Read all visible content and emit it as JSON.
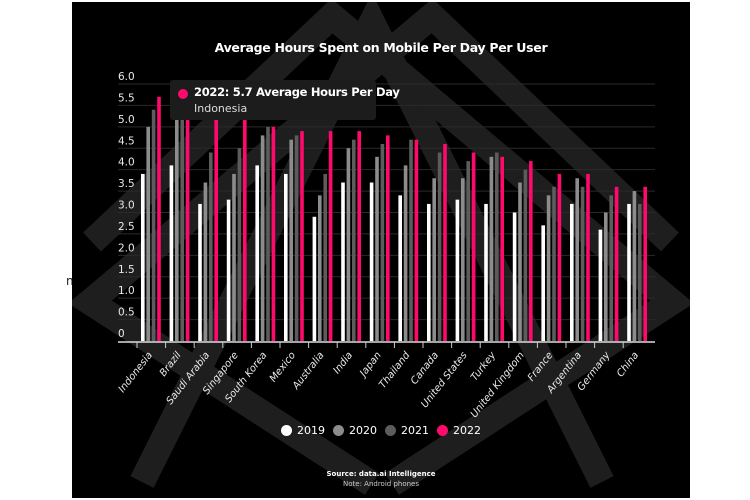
{
  "stray_text": "n",
  "colors": {
    "2019": "#ffffff",
    "2020": "#8c8c8c",
    "2021": "#5c5c5c",
    "2022": "#ff0a6c"
  },
  "tooltip": {
    "main": "2022: 5.7 Average Hours Per Day",
    "sub": "Indonesia"
  },
  "source": "Source: data.ai Intelligence",
  "note": "Note: Android phones",
  "chart_data": {
    "type": "bar",
    "title": "Average Hours Spent on Mobile Per Day Per User",
    "xlabel": "",
    "ylabel": "",
    "ylim": [
      0,
      6
    ],
    "yticks": [
      "0",
      "0.5",
      "1.0",
      "1.5",
      "2.0",
      "2.5",
      "3.0",
      "3.5",
      "4.0",
      "4.5",
      "5.0",
      "5.5",
      "6.0"
    ],
    "grid": true,
    "legend_position": "bottom",
    "categories": [
      "Indonesia",
      "Brazil",
      "Saudi Arabia",
      "Singapore",
      "South Korea",
      "Mexico",
      "Australia",
      "India",
      "Japan",
      "Thailand",
      "Canada",
      "United States",
      "Turkey",
      "United Kingdom",
      "France",
      "Argentina",
      "Germany",
      "China"
    ],
    "series": [
      {
        "name": "2019",
        "values": [
          3.9,
          4.1,
          3.2,
          3.3,
          4.1,
          3.9,
          2.9,
          3.7,
          3.7,
          3.4,
          3.2,
          3.3,
          3.2,
          3.0,
          2.7,
          3.2,
          2.6,
          3.2
        ]
      },
      {
        "name": "2020",
        "values": [
          5.0,
          5.2,
          3.7,
          3.9,
          4.8,
          4.7,
          3.4,
          4.5,
          4.3,
          4.1,
          3.8,
          3.8,
          4.3,
          3.7,
          3.4,
          3.8,
          3.0,
          3.5
        ]
      },
      {
        "name": "2021",
        "values": [
          5.4,
          5.2,
          4.4,
          4.5,
          5.0,
          4.8,
          3.9,
          4.7,
          4.6,
          4.7,
          4.4,
          4.2,
          4.4,
          4.0,
          3.6,
          3.6,
          3.4,
          3.2
        ]
      },
      {
        "name": "2022",
        "values": [
          5.7,
          5.2,
          5.2,
          5.2,
          5.0,
          4.9,
          4.9,
          4.9,
          4.8,
          4.7,
          4.6,
          4.4,
          4.3,
          4.2,
          3.9,
          3.9,
          3.6,
          3.6
        ]
      }
    ]
  }
}
